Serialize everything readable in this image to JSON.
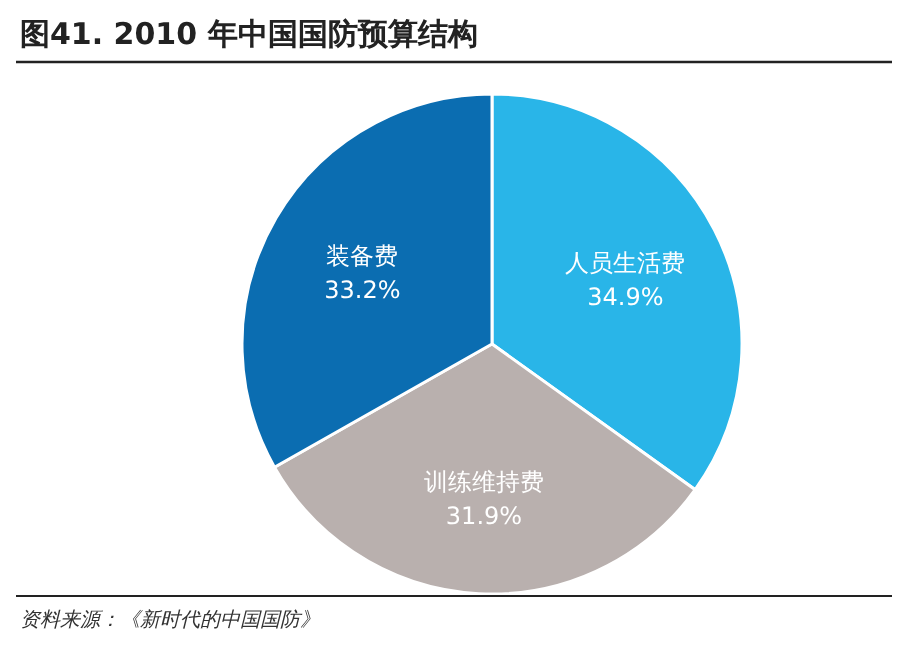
{
  "chart_data": {
    "type": "pie",
    "title": "图41. 2010 年中国国防预算结构",
    "categories": [
      "人员生活费",
      "训练维持费",
      "装备费"
    ],
    "values": [
      34.9,
      31.9,
      33.2
    ],
    "colors": [
      "#29b5e8",
      "#b9b0ae",
      "#0b6db1"
    ],
    "value_labels": [
      "34.9%",
      "31.9%",
      "33.2%"
    ],
    "annotations": [
      "资料来源：《新时代的中国国防》"
    ]
  }
}
